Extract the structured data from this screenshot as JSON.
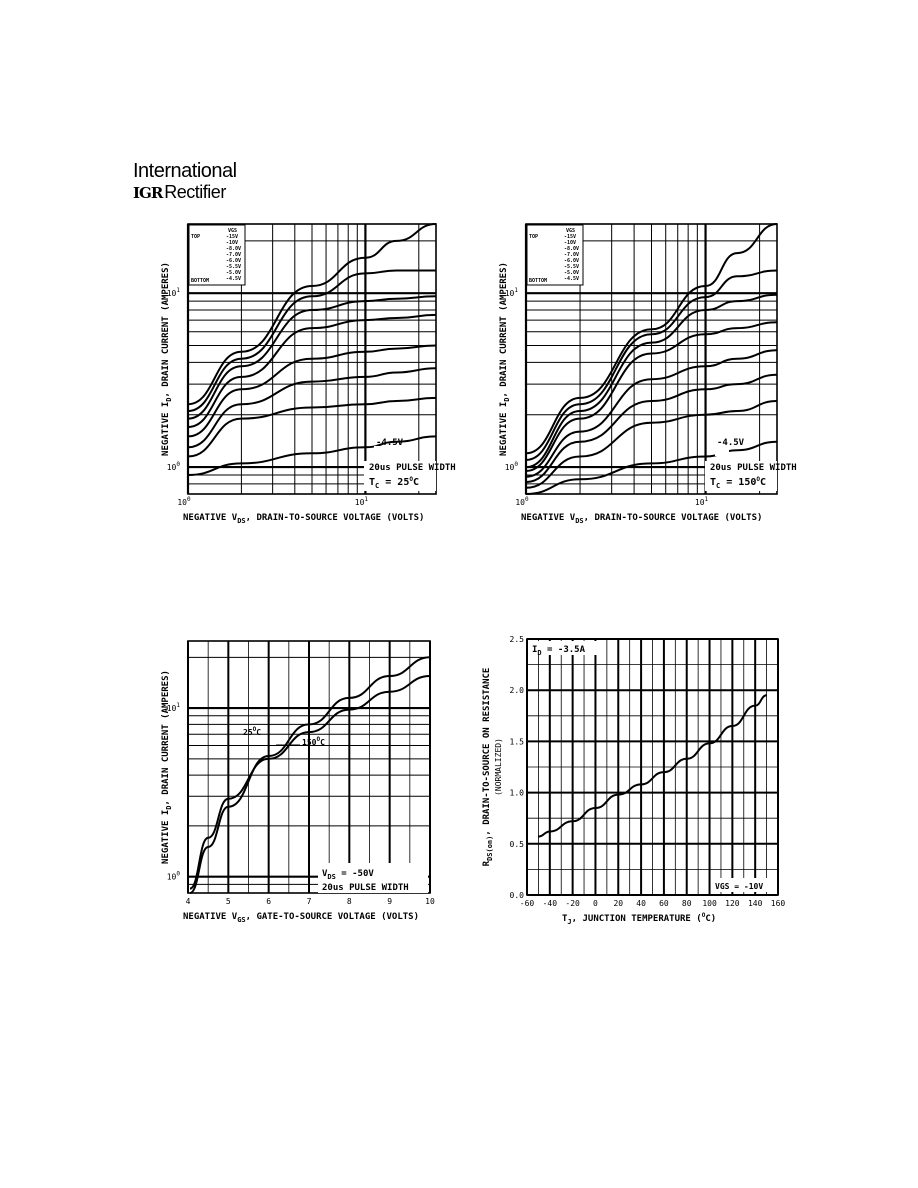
{
  "header": {
    "brand_line1": "International",
    "brand_mark": "IGR",
    "brand_line2": "Rectifier"
  },
  "chart_data": [
    {
      "id": "c1",
      "type": "line",
      "xscale": "log",
      "yscale": "log",
      "xlim": [
        1,
        25
      ],
      "ylim": [
        0.7,
        25
      ],
      "xticks": [
        {
          "v": 1,
          "label": "10",
          "exp": "0"
        },
        {
          "v": 10,
          "label": "10",
          "exp": "1"
        }
      ],
      "yticks": [
        {
          "v": 1,
          "label": "10",
          "exp": "0"
        },
        {
          "v": 10,
          "label": "10",
          "exp": "1"
        }
      ],
      "xlabel": "NEGATIVE V",
      "xlabel_sub": "DS",
      "xlabel_rest": ", DRAIN-TO-SOURCE VOLTAGE (VOLTS)",
      "ylabel": "NEGATIVE I",
      "ylabel_sub": "D",
      "ylabel_rest": ", DRAIN CURRENT (AMPERES)",
      "legend_title": "VGS",
      "legend_top": "TOP",
      "legend_bottom": "BOTTOM",
      "legend_values": [
        "-15V",
        "-10V",
        "-8.0V",
        "-7.0V",
        "-6.0V",
        "-5.5V",
        "-5.0V",
        "-4.5V"
      ],
      "annotations": [
        "-4.5V",
        "20us PULSE WIDTH",
        "T",
        "C",
        " = 25",
        "O",
        "C"
      ],
      "series": [
        {
          "name": "-15V",
          "x": [
            1,
            2,
            5,
            10,
            15,
            25
          ],
          "y": [
            2.3,
            4.6,
            11,
            16,
            20,
            25
          ]
        },
        {
          "name": "-10V",
          "x": [
            1,
            2,
            5,
            10,
            15,
            25
          ],
          "y": [
            2.1,
            4.2,
            9.6,
            13,
            13.5,
            13.5
          ]
        },
        {
          "name": "-8.0V",
          "x": [
            1,
            2,
            5,
            10,
            15,
            25
          ],
          "y": [
            1.9,
            3.8,
            8,
            9,
            9.3,
            9.6
          ]
        },
        {
          "name": "-7.0V",
          "x": [
            1,
            2,
            5,
            10,
            15,
            25
          ],
          "y": [
            1.7,
            3.3,
            6.3,
            7,
            7.2,
            7.5
          ]
        },
        {
          "name": "-6.0V",
          "x": [
            1,
            2,
            5,
            10,
            15,
            25
          ],
          "y": [
            1.5,
            2.8,
            4.2,
            4.6,
            4.8,
            5
          ]
        },
        {
          "name": "-5.5V",
          "x": [
            1,
            2,
            5,
            10,
            15,
            25
          ],
          "y": [
            1.3,
            2.3,
            3.1,
            3.3,
            3.5,
            3.7
          ]
        },
        {
          "name": "-5.0V",
          "x": [
            1,
            2,
            5,
            10,
            15,
            25
          ],
          "y": [
            1.15,
            1.9,
            2.2,
            2.3,
            2.4,
            2.5
          ]
        },
        {
          "name": "-4.5V",
          "x": [
            1,
            2,
            5,
            10,
            15,
            25
          ],
          "y": [
            0.9,
            1.05,
            1.2,
            1.3,
            1.4,
            1.5
          ]
        }
      ]
    },
    {
      "id": "c2",
      "type": "line",
      "xscale": "log",
      "yscale": "log",
      "xlim": [
        1,
        25
      ],
      "ylim": [
        0.7,
        25
      ],
      "xticks": [
        {
          "v": 1,
          "label": "10",
          "exp": "0"
        },
        {
          "v": 10,
          "label": "10",
          "exp": "1"
        }
      ],
      "yticks": [
        {
          "v": 1,
          "label": "10",
          "exp": "0"
        },
        {
          "v": 10,
          "label": "10",
          "exp": "1"
        }
      ],
      "xlabel": "NEGATIVE V",
      "xlabel_sub": "DS",
      "xlabel_rest": ", DRAIN-TO-SOURCE VOLTAGE (VOLTS)",
      "ylabel": "NEGATIVE I",
      "ylabel_sub": "D",
      "ylabel_rest": ", DRAIN CURRENT (AMPERES)",
      "legend_title": "VGS",
      "legend_top": "TOP",
      "legend_bottom": "BOTTOM",
      "legend_values": [
        "-15V",
        "-10V",
        "-8.0V",
        "-7.0V",
        "-6.0V",
        "-5.5V",
        "-5.0V",
        "-4.5V"
      ],
      "annotations": [
        "-4.5V",
        "20us PULSE WIDTH",
        "T",
        "C",
        " = 150",
        "O",
        "C"
      ],
      "series": [
        {
          "name": "-15V",
          "x": [
            1,
            2,
            5,
            10,
            15,
            25
          ],
          "y": [
            1.2,
            2.5,
            6.2,
            11,
            17,
            25
          ]
        },
        {
          "name": "-10V",
          "x": [
            1,
            2,
            5,
            10,
            15,
            25
          ],
          "y": [
            1.1,
            2.3,
            5.8,
            9.5,
            12.5,
            13.5
          ]
        },
        {
          "name": "-8.0V",
          "x": [
            1,
            2,
            5,
            10,
            15,
            25
          ],
          "y": [
            1.0,
            2.1,
            5.2,
            8,
            9,
            9.8
          ]
        },
        {
          "name": "-7.0V",
          "x": [
            1,
            2,
            5,
            10,
            15,
            25
          ],
          "y": [
            0.95,
            1.9,
            4.5,
            5.8,
            6.3,
            6.8
          ]
        },
        {
          "name": "-6.0V",
          "x": [
            1,
            2,
            5,
            10,
            15,
            25
          ],
          "y": [
            0.88,
            1.6,
            3.2,
            3.8,
            4.2,
            4.7
          ]
        },
        {
          "name": "-5.5V",
          "x": [
            1,
            2,
            5,
            10,
            15,
            25
          ],
          "y": [
            0.82,
            1.4,
            2.4,
            2.8,
            3.0,
            3.4
          ]
        },
        {
          "name": "-5.0V",
          "x": [
            1,
            2,
            5,
            10,
            15,
            25
          ],
          "y": [
            0.76,
            1.15,
            1.8,
            2.0,
            2.1,
            2.4
          ]
        },
        {
          "name": "-4.5V",
          "x": [
            1,
            2,
            5,
            10,
            15,
            25
          ],
          "y": [
            0.7,
            0.85,
            1.05,
            1.15,
            1.25,
            1.4
          ]
        }
      ]
    },
    {
      "id": "c3",
      "type": "line",
      "xscale": "linear",
      "yscale": "log",
      "xlim": [
        4,
        10
      ],
      "ylim": [
        0.8,
        25
      ],
      "xticks": [
        {
          "v": 4,
          "label": "4"
        },
        {
          "v": 5,
          "label": "5"
        },
        {
          "v": 6,
          "label": "6"
        },
        {
          "v": 7,
          "label": "7"
        },
        {
          "v": 8,
          "label": "8"
        },
        {
          "v": 9,
          "label": "9"
        },
        {
          "v": 10,
          "label": "10"
        }
      ],
      "yticks": [
        {
          "v": 1,
          "label": "10",
          "exp": "0"
        },
        {
          "v": 10,
          "label": "10",
          "exp": "1"
        }
      ],
      "xlabel": "NEGATIVE V",
      "xlabel_sub": "GS",
      "xlabel_rest": ", GATE-TO-SOURCE VOLTAGE (VOLTS)",
      "ylabel": "NEGATIVE I",
      "ylabel_sub": "D",
      "ylabel_rest": ", DRAIN CURRENT (AMPERES)",
      "annotations": [
        "25",
        "O",
        "C",
        "150",
        "O",
        "C",
        "V",
        "DS",
        " = -50V",
        "20us PULSE WIDTH"
      ],
      "series": [
        {
          "name": "25°C",
          "x": [
            4.05,
            4.5,
            5,
            6,
            7,
            8,
            9,
            10
          ],
          "y": [
            0.8,
            1.5,
            2.6,
            5.2,
            8.0,
            11.5,
            15.5,
            20
          ]
        },
        {
          "name": "150°C",
          "x": [
            4.05,
            4.5,
            5,
            6,
            7,
            8,
            9,
            10
          ],
          "y": [
            0.85,
            1.7,
            2.9,
            5.0,
            7.2,
            9.8,
            12.5,
            15.5
          ]
        }
      ]
    },
    {
      "id": "c4",
      "type": "line",
      "xscale": "linear",
      "yscale": "linear",
      "xlim": [
        -60,
        160
      ],
      "ylim": [
        0,
        2.5
      ],
      "xticks": [
        {
          "v": -60,
          "label": "-60"
        },
        {
          "v": -40,
          "label": "-40"
        },
        {
          "v": -20,
          "label": "-20"
        },
        {
          "v": 0,
          "label": "0"
        },
        {
          "v": 20,
          "label": "20"
        },
        {
          "v": 40,
          "label": "40"
        },
        {
          "v": 60,
          "label": "60"
        },
        {
          "v": 80,
          "label": "80"
        },
        {
          "v": 100,
          "label": "100"
        },
        {
          "v": 120,
          "label": "120"
        },
        {
          "v": 140,
          "label": "140"
        },
        {
          "v": 160,
          "label": "160"
        }
      ],
      "yticks": [
        {
          "v": 0,
          "label": "0.0"
        },
        {
          "v": 0.5,
          "label": "0.5"
        },
        {
          "v": 1.0,
          "label": "1.0"
        },
        {
          "v": 1.5,
          "label": "1.5"
        },
        {
          "v": 2.0,
          "label": "2.0"
        },
        {
          "v": 2.5,
          "label": "2.5"
        }
      ],
      "xlabel": "T",
      "xlabel_sub": "J",
      "xlabel_rest": ", JUNCTION TEMPERATURE (",
      "xlabel_deg": "O",
      "xlabel_end": "C)",
      "ylabel": "R",
      "ylabel_sub": "DS(on)",
      "ylabel_rest": ", DRAIN-TO-SOURCE ON RESISTANCE",
      "ylabel2": "(NORMALIZED)",
      "annotations": [
        "I",
        "D",
        " = -3.5A",
        "VGS = -10V"
      ],
      "series": [
        {
          "name": "RDS(on)",
          "x": [
            -50,
            -40,
            -20,
            0,
            20,
            40,
            60,
            80,
            100,
            120,
            140,
            150
          ],
          "y": [
            0.57,
            0.62,
            0.72,
            0.85,
            0.98,
            1.08,
            1.2,
            1.33,
            1.48,
            1.65,
            1.85,
            1.95
          ]
        }
      ]
    }
  ]
}
